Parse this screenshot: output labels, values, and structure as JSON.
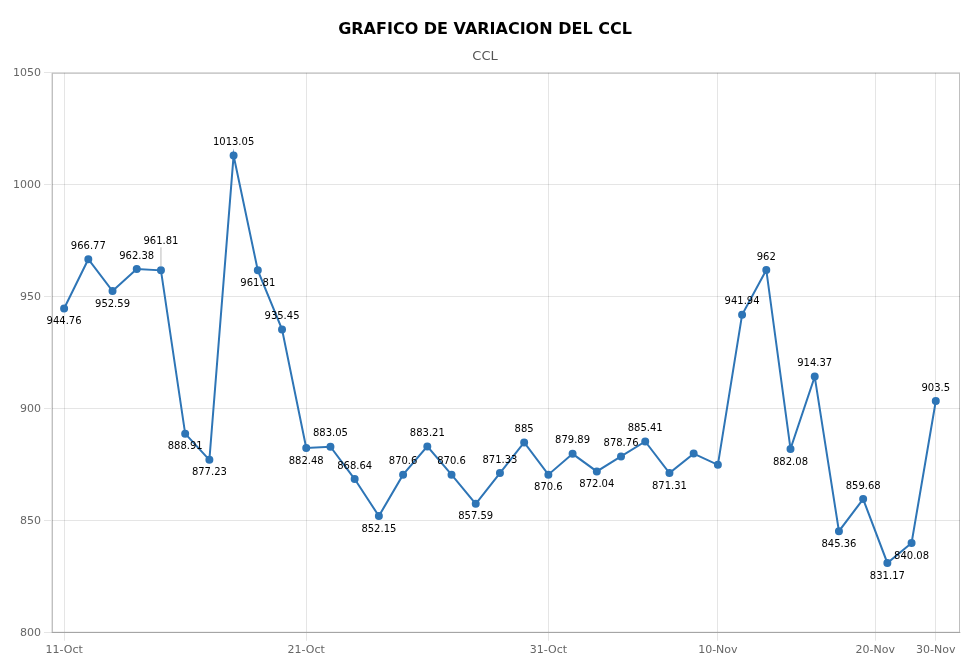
{
  "chart_data": {
    "type": "line",
    "title": "GRAFICO DE VARIACION DEL CCL",
    "subtitle": "CCL",
    "x": [
      0,
      1,
      2,
      3,
      4,
      5,
      6,
      7,
      8,
      9,
      10,
      11,
      12,
      13,
      14,
      15,
      16,
      17,
      18,
      19,
      20,
      21,
      22,
      23,
      24,
      25,
      26,
      27,
      28,
      29,
      30,
      31,
      32,
      33,
      34,
      35,
      36
    ],
    "values": [
      944.76,
      966.77,
      952.59,
      962.38,
      961.81,
      888.91,
      877.23,
      1013.05,
      961.81,
      935.45,
      882.48,
      883.05,
      868.64,
      852.15,
      870.6,
      883.21,
      870.6,
      857.59,
      871.33,
      885.0,
      870.6,
      879.89,
      872.04,
      878.76,
      885.41,
      871.31,
      880.0,
      875.0,
      941.94,
      962.0,
      882.08,
      914.37,
      845.36,
      859.68,
      831.17,
      840.08,
      903.5
    ],
    "value_labels": [
      "944.76",
      "966.77",
      "952.59",
      "962.38",
      "961.81",
      "888.91",
      "877.23",
      "1013.05",
      "961.81",
      "935.45",
      "882.48",
      "883.05",
      "868.64",
      "852.15",
      "870.6",
      "883.21",
      "870.6",
      "857.59",
      "871.33",
      "885",
      "870.6",
      "879.89",
      "872.04",
      "878.76",
      "885.41",
      "871.31",
      null,
      null,
      "941.94",
      "962",
      "882.08",
      "914.37",
      "845.36",
      "859.68",
      "831.17",
      "840.08",
      "903.5"
    ],
    "color": "#2E75B6",
    "marker": "circle",
    "xlim": [
      -0.5,
      37
    ],
    "xticks": [
      {
        "value": 0,
        "label": "11-Oct"
      },
      {
        "value": 10,
        "label": "21-Oct"
      },
      {
        "value": 20,
        "label": "31-Oct"
      },
      {
        "value": 27,
        "label": "10-Nov"
      },
      {
        "value": 33.5,
        "label": "20-Nov"
      },
      {
        "value": 36,
        "label": "30-Nov"
      }
    ],
    "ylim": [
      800,
      1050
    ],
    "yticks": [
      800,
      850,
      900,
      950,
      1000,
      1050
    ],
    "grid": true,
    "data_labels": true
  }
}
